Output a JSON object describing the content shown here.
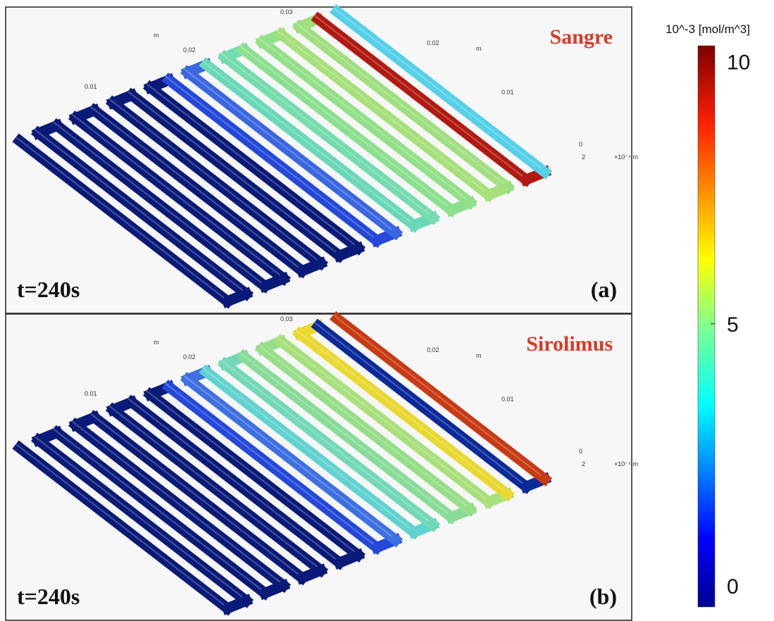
{
  "panels": [
    {
      "species": "Sangre",
      "time": "t=240s",
      "label": "(a)",
      "axis_texts": [
        "0.03",
        "m",
        "0.02",
        "0.01",
        "0.02",
        "m",
        "0.01",
        "0",
        "2",
        "×10⁻⁴ m"
      ]
    },
    {
      "species": "Sirolimus",
      "time": "t=240s",
      "label": "(b)",
      "axis_texts": [
        "0.03",
        "m",
        "0.02",
        "0.01",
        "0.02",
        "m",
        "0.01",
        "0",
        "2",
        "×10⁻⁴ m"
      ]
    }
  ],
  "colorbar": {
    "title": "10^-3 [mol/m^3]",
    "lim": [
      -0.4,
      10.3
    ],
    "ticks": [
      0,
      5,
      10
    ]
  }
}
